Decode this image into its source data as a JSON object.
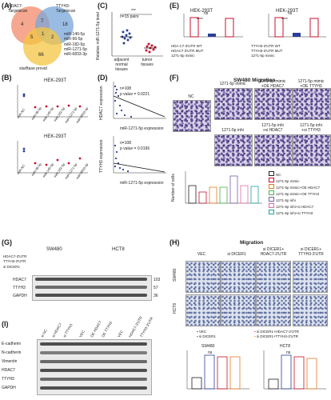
{
  "panels": {
    "A": {
      "label": "(A)",
      "circle1": "HDAC7-\nTargetscan",
      "circle2": "TTYH3-\nTargetscan",
      "circle3": "starBase provid",
      "n1": "4",
      "n2": "7",
      "n3": "18",
      "n4": "5",
      "n5": "1",
      "n6": "2",
      "n7": "66",
      "mirs": [
        "miR-140-5p",
        "miR-96-5p",
        "miR-182-5p",
        "miR-1271-5p",
        "miR-6833-3p"
      ]
    },
    "B": {
      "label": "(B)",
      "cell": "HEK-293T",
      "ylabel1": "Relative luciferase activity of HDAC7-3'UTR",
      "ylabel2": "Relative luciferase activity of TTYH3-3'UTR",
      "x": [
        "miR-NC",
        "miR-96-5p",
        "miR-140-5p",
        "miR-182-5p",
        "miR-1271-5p",
        "miR-6833-3p"
      ]
    },
    "C": {
      "label": "(C)",
      "annot": "n=15 pairs",
      "sig": "***",
      "ylabel": "Relative miR-1271-5p level",
      "x1": "adjacent normal tissues",
      "x2": "tumor tissues"
    },
    "D": {
      "label": "(D)",
      "top": {
        "n": "n=108",
        "p": "p value = 0.0221",
        "ylabel": "HDAC7 expression",
        "xlabel": "miR-1271-5p expression"
      },
      "bottom": {
        "n": "n=108",
        "p": "p value = 0.0196",
        "ylabel": "TTYH3 expression",
        "xlabel": "miR-1271-5p expression"
      },
      "ticks": [
        "0",
        "1000",
        "2000",
        "3000"
      ]
    },
    "E": {
      "label": "(E)",
      "cell": "HEK-293T",
      "ylabel": "Luciferase activity",
      "ns": "ns",
      "sig": "****",
      "rows_left": [
        "HDA C7-3'UTR WT",
        "HDAC7-3'UTR MUT",
        "1271-5p mimic"
      ],
      "rows_right": [
        "TTYH3-3'UTR WT",
        "TTYH3-3'UTR MUT",
        "1271-5p mimic"
      ]
    },
    "F": {
      "label": "(F)",
      "title": "SW480 Migration",
      "images": [
        "NC",
        "1271-5p mimic",
        "1271-5p mimic\n+OE HDAC7",
        "1271-5p mimic\n+OE TTYH3",
        "1271-5p inhi",
        "1271-5p inhi\n+si HDAC7",
        "1271-5p inhi\n+si TTYH3"
      ],
      "ylabel": "Number of cells",
      "legend": [
        "NC",
        "1271-5p mimic",
        "1271-5p mimic+OE HDAC7",
        "1271-5p mimic+OE TTYH3",
        "1271-5p inhi",
        "1271-5p inhi+si HDAC7",
        "1271-5p inhi+si TTYH3"
      ]
    },
    "G": {
      "label": "(G)",
      "groups": [
        "SW480",
        "HCT8"
      ],
      "rows": [
        "HDAC7-3'UTR",
        "TTYH3-3'UTR",
        "si DICER1"
      ],
      "proteins": [
        "HDAC7",
        "TTYH3",
        "GAPDH"
      ],
      "kda": [
        "103",
        "57",
        "36"
      ]
    },
    "H": {
      "label": "(H)",
      "title": "Migration",
      "cols": [
        "VEC",
        "si DICER1",
        "si DICER1+\nHDAC7-3'UTR",
        "si DICER1+\nTTYH3-3'UTR"
      ],
      "rows": [
        "SW480",
        "HCT8"
      ],
      "legend": [
        "VEC",
        "si DICER1",
        "si DICER1+HDAC7-3'UTR",
        "si DICER1+TTYH3-3'UTR"
      ],
      "ylabel": "Number of cells",
      "ns": "ns"
    },
    "I": {
      "label": "(I)",
      "cols": [
        "si NC",
        "si HDAC7",
        "si TTYH3",
        "VEC",
        "OE HDAC7",
        "OE TTYH3",
        "VEC",
        "HDAC7-3'UTR",
        "TTYH3-3'UTR"
      ],
      "proteins": [
        "E-cadherin",
        "N-cadherin",
        "Vimentin",
        "HDAC7",
        "TTYH3",
        "GAPDH"
      ]
    }
  },
  "colors": {
    "red": "#c8102e",
    "blue": "#2a3f9a",
    "green": "#4caf50",
    "orange": "#e57a1c",
    "purple": "#7a5ea8",
    "pink": "#e26aa0",
    "cyan": "#1fa3a3"
  }
}
